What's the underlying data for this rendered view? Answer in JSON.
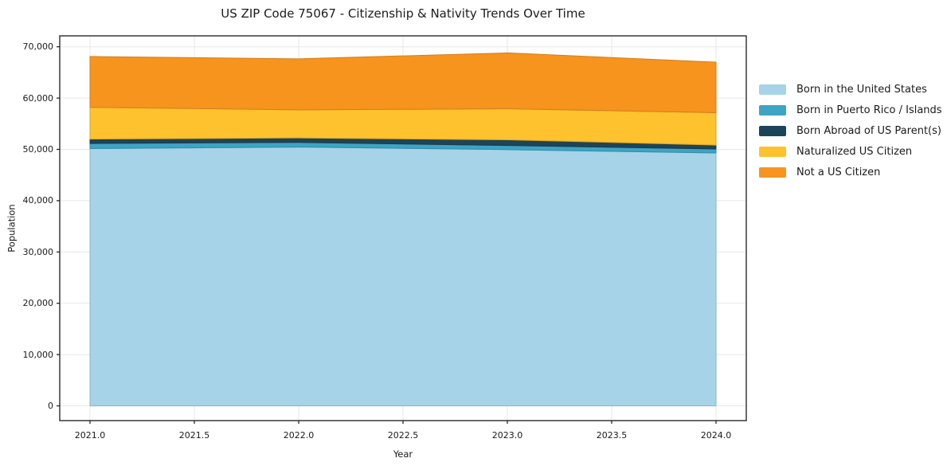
{
  "title": "US ZIP Code 75067 - Citizenship & Nativity Trends Over Time",
  "chart_data": {
    "type": "area",
    "stacked": true,
    "title": "US ZIP Code 75067 - Citizenship & Nativity Trends Over Time",
    "xlabel": "Year",
    "ylabel": "Population",
    "x": [
      2021,
      2022,
      2023,
      2024
    ],
    "series": [
      {
        "name": "Born in the United States",
        "color": "#a6d3e8",
        "values": [
          50150,
          50450,
          49950,
          49300
        ]
      },
      {
        "name": "Born in Puerto Rico / Islands",
        "color": "#3da4c4",
        "values": [
          1000,
          900,
          800,
          780
        ]
      },
      {
        "name": "Born Abroad of US Parent(s)",
        "color": "#1d4458",
        "values": [
          850,
          880,
          1120,
          750
        ]
      },
      {
        "name": "Naturalized US Citizen",
        "color": "#fdc22e",
        "values": [
          6200,
          5470,
          6050,
          6320
        ]
      },
      {
        "name": "Not a US Citizen",
        "color": "#f7941e",
        "values": [
          9900,
          9950,
          10880,
          9850
        ]
      }
    ],
    "stack_totals": [
      68100,
      67650,
      68800,
      67000
    ],
    "x_ticks": [
      2021.0,
      2021.5,
      2022.0,
      2022.5,
      2023.0,
      2023.5,
      2024.0
    ],
    "x_tick_labels": [
      "2021.0",
      "2021.5",
      "2022.0",
      "2022.5",
      "2023.0",
      "2023.5",
      "2024.0"
    ],
    "y_ticks": [
      0,
      10000,
      20000,
      30000,
      40000,
      50000,
      60000,
      70000
    ],
    "y_tick_labels": [
      "0",
      "10,000",
      "20,000",
      "30,000",
      "40,000",
      "50,000",
      "60,000",
      "70,000"
    ],
    "xlim": [
      2021,
      2024
    ],
    "ylim": [
      0,
      70000
    ],
    "grid": true,
    "legend_position": "right",
    "colors": {
      "grid": "#e7e7e7",
      "spine": "#1a1a1a",
      "background": "#ffffff",
      "text": "#1a1a1a"
    }
  }
}
